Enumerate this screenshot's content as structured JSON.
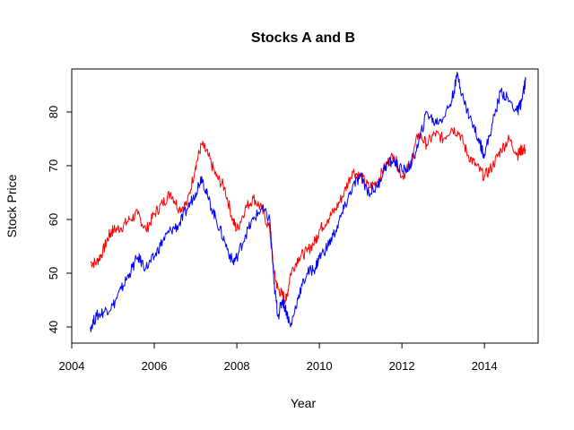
{
  "chart_data": {
    "type": "line",
    "title": "Stocks A and B",
    "xlabel": "Year",
    "ylabel": "Stock Price",
    "xlim": [
      2004,
      2015.3
    ],
    "ylim": [
      37,
      88
    ],
    "xticks": [
      2004,
      2006,
      2008,
      2010,
      2012,
      2014
    ],
    "xtick_labels": [
      "2004",
      "2006",
      "2008",
      "2010",
      "2012",
      "2014"
    ],
    "yticks": [
      40,
      50,
      60,
      70,
      80
    ],
    "ytick_labels": [
      "40",
      "50",
      "60",
      "70",
      "80"
    ],
    "grid": false,
    "legend": "none",
    "series": [
      {
        "color": "#ff0000",
        "x": [
          2004.45,
          2004.6,
          2004.75,
          2004.9,
          2005.0,
          2005.2,
          2005.4,
          2005.6,
          2005.8,
          2006.0,
          2006.2,
          2006.4,
          2006.6,
          2006.8,
          2007.0,
          2007.15,
          2007.3,
          2007.5,
          2007.7,
          2007.9,
          2008.0,
          2008.2,
          2008.4,
          2008.6,
          2008.8,
          2008.9,
          2009.0,
          2009.1,
          2009.2,
          2009.3,
          2009.5,
          2009.7,
          2009.9,
          2010.0,
          2010.2,
          2010.4,
          2010.6,
          2010.8,
          2011.0,
          2011.2,
          2011.4,
          2011.6,
          2011.8,
          2012.0,
          2012.2,
          2012.4,
          2012.6,
          2012.8,
          2013.0,
          2013.2,
          2013.4,
          2013.6,
          2013.8,
          2014.0,
          2014.2,
          2014.4,
          2014.6,
          2014.8,
          2014.9,
          2015.0
        ],
        "y": [
          52,
          52,
          54,
          57,
          58,
          58.5,
          60,
          61,
          58,
          61,
          63,
          65,
          62,
          63,
          70,
          74,
          72,
          68,
          66,
          60,
          58,
          62,
          64,
          62,
          58,
          50,
          47,
          46,
          45,
          50,
          53,
          54,
          56,
          58,
          60,
          62,
          65,
          69,
          68,
          66,
          67,
          70,
          72,
          68,
          70,
          76,
          74,
          76,
          75,
          77,
          76,
          72,
          70,
          68,
          70,
          73,
          75,
          72,
          73,
          73
        ]
      },
      {
        "color": "#0000ff",
        "x": [
          2004.45,
          2004.6,
          2004.8,
          2005.0,
          2005.2,
          2005.4,
          2005.6,
          2005.8,
          2006.0,
          2006.2,
          2006.4,
          2006.6,
          2006.8,
          2007.0,
          2007.15,
          2007.3,
          2007.5,
          2007.7,
          2007.9,
          2008.0,
          2008.2,
          2008.4,
          2008.6,
          2008.8,
          2008.9,
          2009.0,
          2009.1,
          2009.2,
          2009.3,
          2009.5,
          2009.7,
          2009.9,
          2010.0,
          2010.2,
          2010.4,
          2010.6,
          2010.8,
          2011.0,
          2011.2,
          2011.4,
          2011.6,
          2011.8,
          2012.0,
          2012.2,
          2012.4,
          2012.6,
          2012.8,
          2013.0,
          2013.2,
          2013.35,
          2013.5,
          2013.7,
          2013.9,
          2014.0,
          2014.2,
          2014.4,
          2014.6,
          2014.8,
          2014.9,
          2015.0
        ],
        "y": [
          40,
          42,
          43,
          44,
          47,
          50,
          53,
          51,
          53,
          56,
          58,
          59,
          62,
          65,
          68,
          64,
          60,
          56,
          52,
          53,
          57,
          60,
          62,
          60,
          48,
          42,
          45,
          43,
          40,
          46,
          50,
          51,
          53,
          55,
          58,
          62,
          66,
          68,
          65,
          66,
          70,
          71,
          69,
          70,
          74,
          80,
          78,
          79,
          82,
          87,
          82,
          78,
          74,
          72,
          78,
          84,
          82,
          80,
          82,
          86
        ]
      }
    ]
  }
}
